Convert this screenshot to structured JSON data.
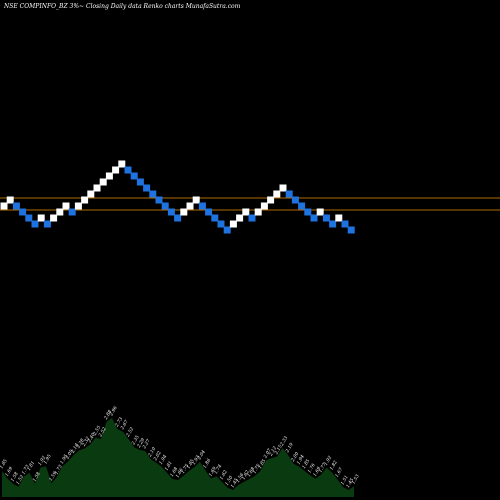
{
  "chart_data": {
    "type": "renko",
    "title": "NSE COMPINFO_BZ 3%~ Closing Daily data Renko charts MunafaSutra.com",
    "colors": {
      "background": "#000000",
      "up_brick": "#ffffff",
      "down_brick": "#1e73e0",
      "reference_line": "#b26a00",
      "volume_area": "#0a3a10",
      "volume_label": "#ffffff"
    },
    "reference_lines": [
      2,
      0
    ],
    "bricks": [
      {
        "level": 0,
        "dir": "up"
      },
      {
        "level": 1,
        "dir": "up"
      },
      {
        "level": 0,
        "dir": "down"
      },
      {
        "level": -1,
        "dir": "down"
      },
      {
        "level": -2,
        "dir": "down"
      },
      {
        "level": -3,
        "dir": "down"
      },
      {
        "level": -2,
        "dir": "up"
      },
      {
        "level": -3,
        "dir": "down"
      },
      {
        "level": -2,
        "dir": "up"
      },
      {
        "level": -1,
        "dir": "up"
      },
      {
        "level": 0,
        "dir": "up"
      },
      {
        "level": -1,
        "dir": "down"
      },
      {
        "level": 0,
        "dir": "up"
      },
      {
        "level": 1,
        "dir": "up"
      },
      {
        "level": 2,
        "dir": "up"
      },
      {
        "level": 3,
        "dir": "up"
      },
      {
        "level": 4,
        "dir": "up"
      },
      {
        "level": 5,
        "dir": "up"
      },
      {
        "level": 6,
        "dir": "up"
      },
      {
        "level": 7,
        "dir": "up"
      },
      {
        "level": 6,
        "dir": "down"
      },
      {
        "level": 5,
        "dir": "down"
      },
      {
        "level": 4,
        "dir": "down"
      },
      {
        "level": 3,
        "dir": "down"
      },
      {
        "level": 2,
        "dir": "down"
      },
      {
        "level": 1,
        "dir": "down"
      },
      {
        "level": 0,
        "dir": "down"
      },
      {
        "level": -1,
        "dir": "down"
      },
      {
        "level": -2,
        "dir": "down"
      },
      {
        "level": -1,
        "dir": "up"
      },
      {
        "level": 0,
        "dir": "up"
      },
      {
        "level": 1,
        "dir": "up"
      },
      {
        "level": 0,
        "dir": "down"
      },
      {
        "level": -1,
        "dir": "down"
      },
      {
        "level": -2,
        "dir": "down"
      },
      {
        "level": -3,
        "dir": "down"
      },
      {
        "level": -4,
        "dir": "down"
      },
      {
        "level": -3,
        "dir": "up"
      },
      {
        "level": -2,
        "dir": "up"
      },
      {
        "level": -1,
        "dir": "up"
      },
      {
        "level": -2,
        "dir": "down"
      },
      {
        "level": -1,
        "dir": "up"
      },
      {
        "level": 0,
        "dir": "up"
      },
      {
        "level": 1,
        "dir": "up"
      },
      {
        "level": 2,
        "dir": "up"
      },
      {
        "level": 3,
        "dir": "up"
      },
      {
        "level": 2,
        "dir": "down"
      },
      {
        "level": 1,
        "dir": "down"
      },
      {
        "level": 0,
        "dir": "down"
      },
      {
        "level": -1,
        "dir": "down"
      },
      {
        "level": -2,
        "dir": "down"
      },
      {
        "level": -1,
        "dir": "up"
      },
      {
        "level": -2,
        "dir": "down"
      },
      {
        "level": -3,
        "dir": "down"
      },
      {
        "level": -2,
        "dir": "up"
      },
      {
        "level": -3,
        "dir": "down"
      },
      {
        "level": -4,
        "dir": "down"
      }
    ],
    "volume_labels": [
      "1.85",
      "1.69",
      "1.58",
      "1.52",
      "1.73",
      "1.81",
      "1.58",
      "1.92",
      "1.95",
      "1.59",
      "1.73",
      "1.95",
      "2.05",
      "2.18",
      "2.28",
      "2.32",
      "2.40",
      "2.55",
      "2.52",
      "2.88",
      "2.96",
      "2.73",
      "2.67",
      "2.52",
      "2.35",
      "2.29",
      "2.27",
      "2.10",
      "2.02",
      "1.94",
      "1.81",
      "1.68",
      "1.66",
      "1.75",
      "1.85",
      "1.93",
      "2.04",
      "1.86",
      "1.69",
      "1.74",
      "1.62",
      "1.50",
      "1.45",
      "1.56",
      "1.62",
      "1.68",
      "1.75",
      "1.85",
      "2.07",
      "2.12",
      "2.15",
      "2.33",
      "2.19",
      "2.00",
      "1.94",
      "1.85",
      "1.76",
      "1.69",
      "1.77",
      "1.92",
      "1.82",
      "1.67",
      "1.51",
      "1.45",
      "1.53"
    ]
  }
}
